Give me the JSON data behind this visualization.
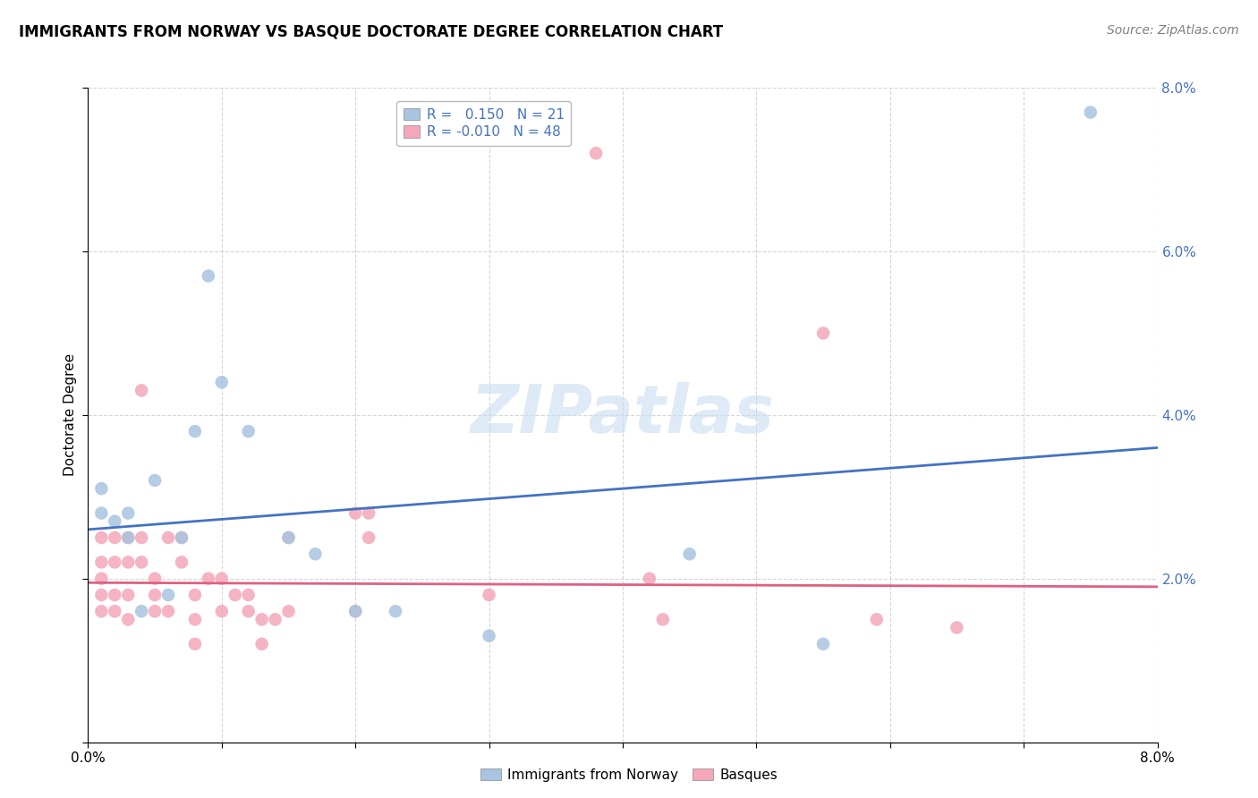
{
  "title": "IMMIGRANTS FROM NORWAY VS BASQUE DOCTORATE DEGREE CORRELATION CHART",
  "source": "Source: ZipAtlas.com",
  "ylabel": "Doctorate Degree",
  "legend_norway_R": "0.150",
  "legend_norway_N": "21",
  "legend_basque_R": "-0.010",
  "legend_basque_N": "48",
  "xlim": [
    0.0,
    0.08
  ],
  "ylim": [
    0.0,
    0.08
  ],
  "norway_x": [
    0.001,
    0.001,
    0.002,
    0.003,
    0.003,
    0.004,
    0.005,
    0.006,
    0.007,
    0.008,
    0.009,
    0.01,
    0.012,
    0.015,
    0.017,
    0.02,
    0.023,
    0.03,
    0.045,
    0.055,
    0.075
  ],
  "norway_y": [
    0.031,
    0.028,
    0.027,
    0.028,
    0.025,
    0.016,
    0.032,
    0.018,
    0.025,
    0.038,
    0.057,
    0.044,
    0.038,
    0.025,
    0.023,
    0.016,
    0.016,
    0.013,
    0.023,
    0.012,
    0.077
  ],
  "basque_x": [
    0.001,
    0.001,
    0.001,
    0.001,
    0.001,
    0.002,
    0.002,
    0.002,
    0.002,
    0.003,
    0.003,
    0.003,
    0.003,
    0.004,
    0.004,
    0.004,
    0.005,
    0.005,
    0.005,
    0.006,
    0.006,
    0.007,
    0.007,
    0.008,
    0.008,
    0.008,
    0.009,
    0.01,
    0.01,
    0.011,
    0.012,
    0.012,
    0.013,
    0.013,
    0.014,
    0.015,
    0.015,
    0.02,
    0.02,
    0.021,
    0.021,
    0.03,
    0.038,
    0.042,
    0.043,
    0.055,
    0.059,
    0.065
  ],
  "basque_y": [
    0.025,
    0.022,
    0.02,
    0.018,
    0.016,
    0.025,
    0.022,
    0.018,
    0.016,
    0.025,
    0.022,
    0.018,
    0.015,
    0.043,
    0.025,
    0.022,
    0.02,
    0.018,
    0.016,
    0.025,
    0.016,
    0.025,
    0.022,
    0.018,
    0.015,
    0.012,
    0.02,
    0.02,
    0.016,
    0.018,
    0.018,
    0.016,
    0.015,
    0.012,
    0.015,
    0.025,
    0.016,
    0.028,
    0.016,
    0.028,
    0.025,
    0.018,
    0.072,
    0.02,
    0.015,
    0.05,
    0.015,
    0.014
  ],
  "norway_color": "#a8c4e0",
  "basque_color": "#f4a7b9",
  "norway_line_color": "#4472c4",
  "basque_line_color": "#e06080",
  "right_tick_color": "#4472c4",
  "background_color": "#ffffff",
  "grid_color": "#cccccc",
  "title_fontsize": 12,
  "source_fontsize": 10,
  "label_fontsize": 11,
  "tick_fontsize": 11,
  "legend_fontsize": 11,
  "norway_trend_y0": 0.026,
  "norway_trend_y1": 0.036,
  "basque_trend_y0": 0.0195,
  "basque_trend_y1": 0.019,
  "watermark": "ZIPatlas",
  "watermark_color": "#c8ddf0",
  "scatter_size": 110
}
